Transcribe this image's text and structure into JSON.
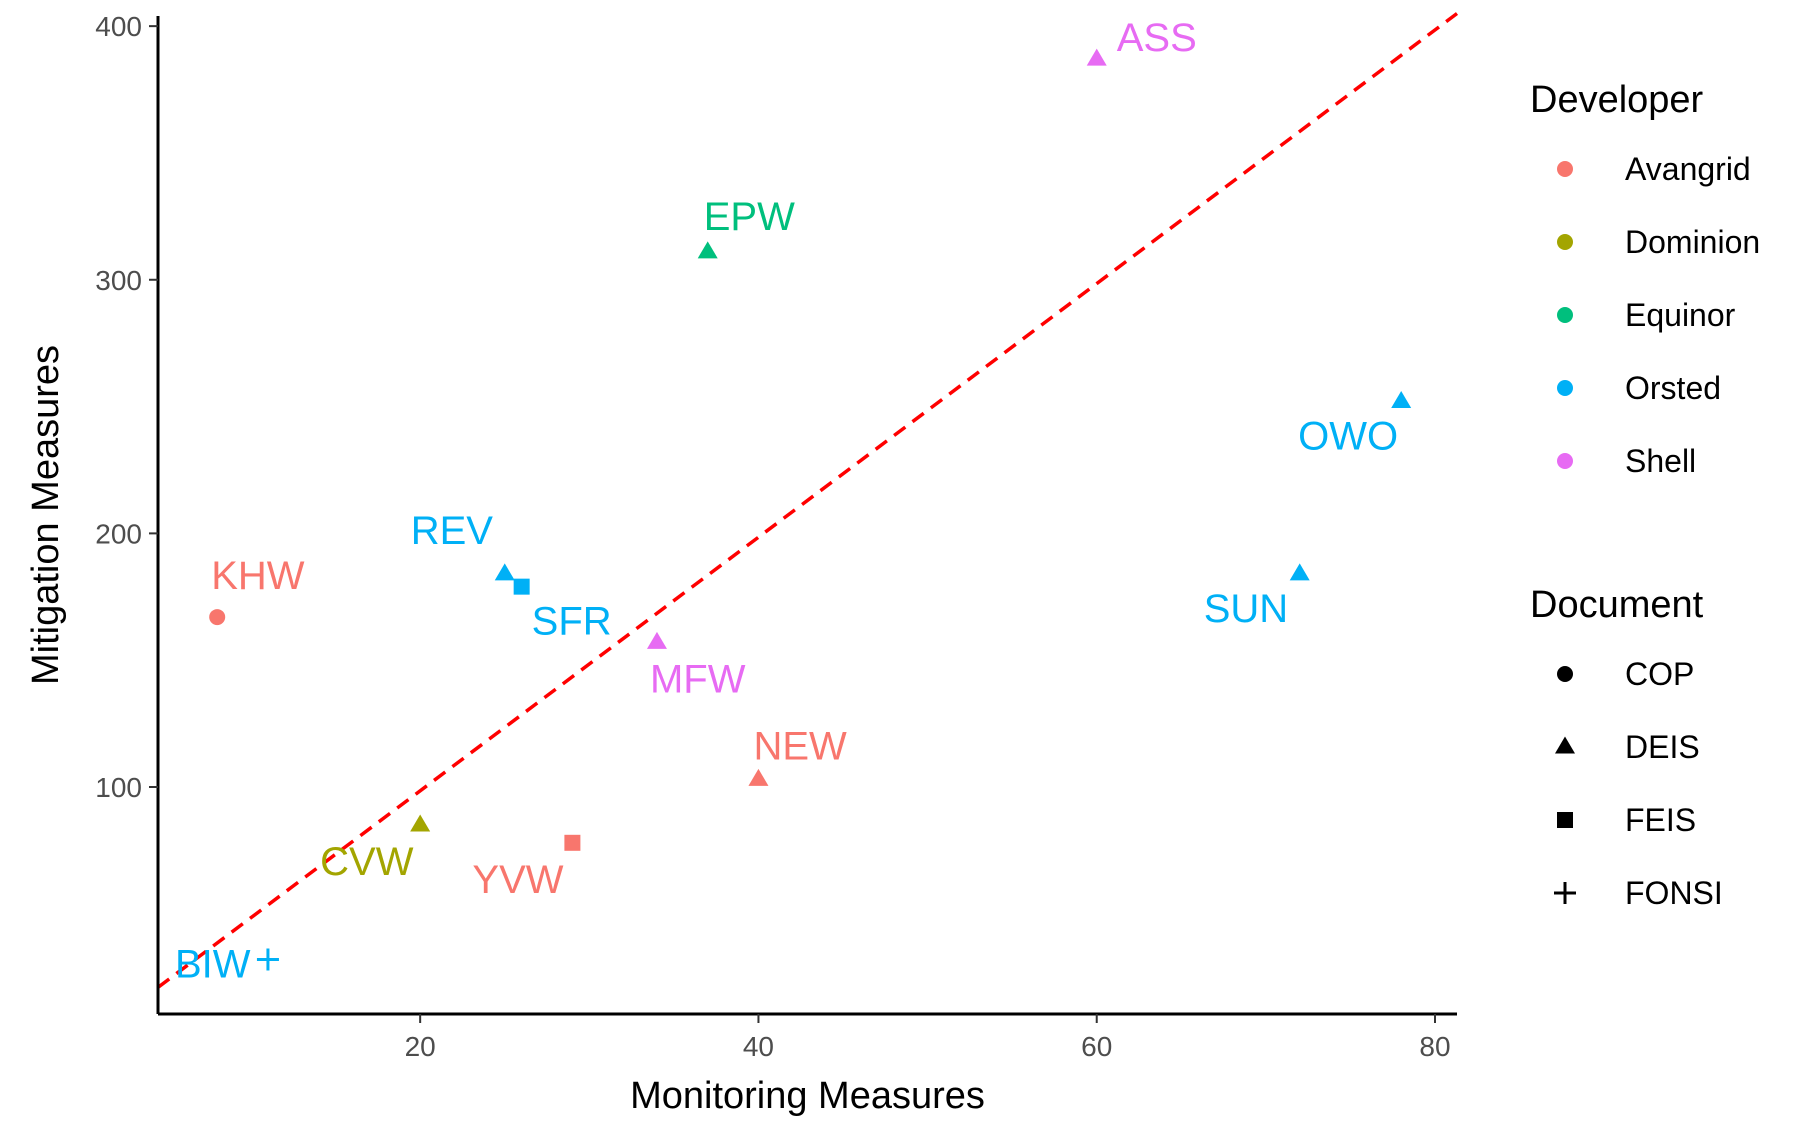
{
  "chart_data": {
    "type": "scatter",
    "xlabel": "Monitoring Measures",
    "ylabel": "Mitigation Measures",
    "xlim": [
      4.5,
      81.3
    ],
    "ylim": [
      10.5,
      404
    ],
    "xticks": [
      20,
      40,
      60,
      80
    ],
    "yticks": [
      100,
      200,
      300,
      400
    ],
    "grid": false,
    "reference_line": {
      "style": "dashed",
      "color": "#ff0000",
      "x": [
        4.5,
        81.3
      ],
      "y": [
        21,
        405
      ]
    },
    "legend_placement": "right",
    "colors": {
      "Avangrid": "#F8766D",
      "Dominion": "#A3A500",
      "Equinor": "#00BF7D",
      "Orsted": "#00B0F6",
      "Shell": "#E76BF3"
    },
    "legends": [
      {
        "title": "Developer",
        "kind": "color",
        "entries": [
          "Avangrid",
          "Dominion",
          "Equinor",
          "Orsted",
          "Shell"
        ]
      },
      {
        "title": "Document",
        "kind": "shape",
        "entries": [
          "COP",
          "DEIS",
          "FEIS",
          "FONSI"
        ],
        "shapes": [
          "circle",
          "triangle",
          "square",
          "plus"
        ]
      }
    ],
    "points": [
      {
        "label": "KHW",
        "x": 8,
        "y": 167,
        "developer": "Avangrid",
        "document": "COP"
      },
      {
        "label": "REV",
        "x": 25,
        "y": 184,
        "developer": "Orsted",
        "document": "DEIS"
      },
      {
        "label": "SFR",
        "x": 26,
        "y": 179,
        "developer": "Orsted",
        "document": "FEIS"
      },
      {
        "label": "EPW",
        "x": 37,
        "y": 311,
        "developer": "Equinor",
        "document": "DEIS"
      },
      {
        "label": "ASS",
        "x": 60,
        "y": 387,
        "developer": "Shell",
        "document": "DEIS"
      },
      {
        "label": "OWO",
        "x": 78,
        "y": 252,
        "developer": "Orsted",
        "document": "DEIS"
      },
      {
        "label": "SUN",
        "x": 72,
        "y": 184,
        "developer": "Orsted",
        "document": "DEIS"
      },
      {
        "label": "MFW",
        "x": 34,
        "y": 157,
        "developer": "Shell",
        "document": "DEIS"
      },
      {
        "label": "NEW",
        "x": 40,
        "y": 103,
        "developer": "Avangrid",
        "document": "DEIS"
      },
      {
        "label": "CVW",
        "x": 20,
        "y": 85,
        "developer": "Dominion",
        "document": "DEIS"
      },
      {
        "label": "YVW",
        "x": 29,
        "y": 78,
        "developer": "Avangrid",
        "document": "FEIS"
      },
      {
        "label": "BIW",
        "x": 11,
        "y": 32,
        "developer": "Orsted",
        "document": "FONSI"
      }
    ]
  }
}
